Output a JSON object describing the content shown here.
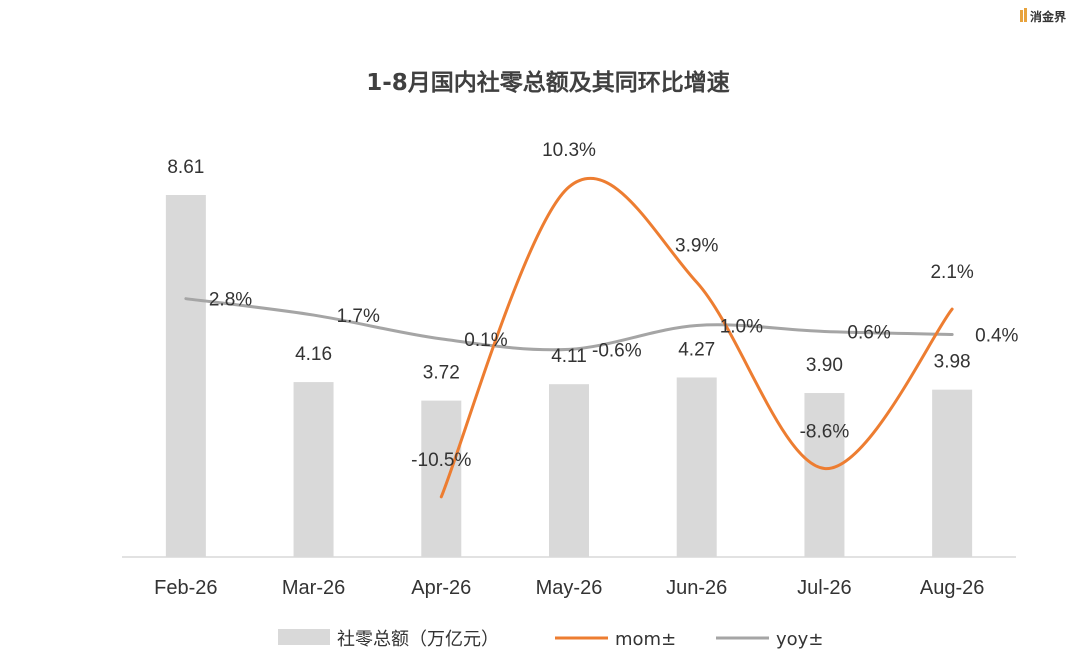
{
  "logo": {
    "text": "消金界"
  },
  "chart_data": {
    "type": "bar",
    "title": "1-8月国内社零总额及其同环比增速",
    "categories": [
      "Feb-26",
      "Mar-26",
      "Apr-26",
      "May-26",
      "Jun-26",
      "Jul-26",
      "Aug-26"
    ],
    "ylim": [
      0,
      10
    ],
    "series": [
      {
        "name": "社零总额（万亿元）",
        "type": "bar",
        "values": [
          8.61,
          4.16,
          3.72,
          4.11,
          4.27,
          3.9,
          3.98
        ],
        "labels": [
          "8.61",
          "4.16",
          "3.72",
          "4.11",
          "4.27",
          "3.90",
          "3.98"
        ],
        "color": "#d9d9d9"
      },
      {
        "name": "mom±",
        "type": "line",
        "unit": "%",
        "values": [
          null,
          null,
          -10.5,
          10.3,
          3.9,
          -8.6,
          2.1
        ],
        "labels": [
          "",
          "",
          "-10.5%",
          "10.3%",
          "3.9%",
          "-8.6%",
          "2.1%"
        ],
        "ylim": [
          -14,
          14
        ],
        "color": "#ed7d31"
      },
      {
        "name": "yoy±",
        "type": "line",
        "unit": "%",
        "values": [
          2.8,
          1.7,
          0.1,
          -0.6,
          1.0,
          0.6,
          0.4
        ],
        "labels": [
          "2.8%",
          "1.7%",
          "0.1%",
          "-0.6%",
          "1.0%",
          "0.6%",
          "0.4%"
        ],
        "color": "#a5a5a5"
      }
    ],
    "grid": false,
    "legend": "bottom"
  }
}
